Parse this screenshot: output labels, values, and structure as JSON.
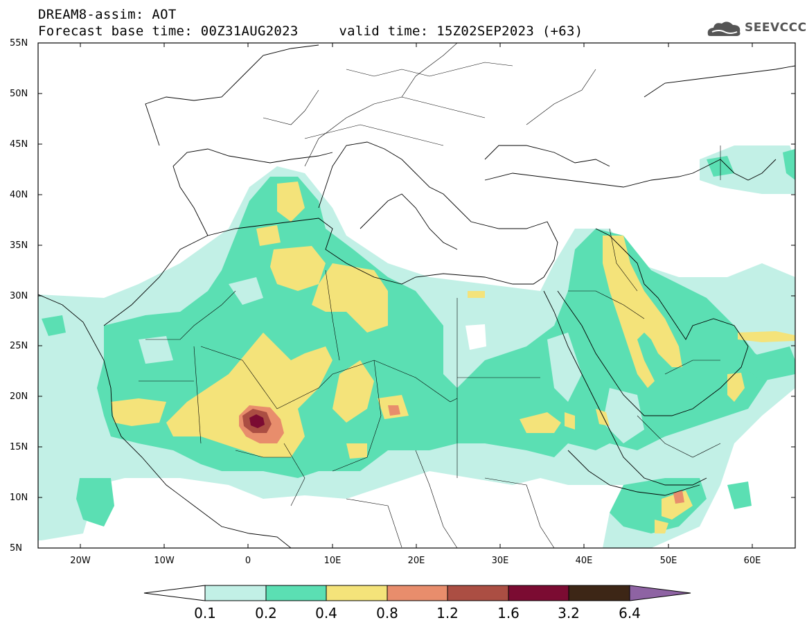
{
  "title": {
    "line1": "DREAM8-assim: AOT",
    "line2": "Forecast base time: 00Z31AUG2023     valid time: 15Z02SEP2023 (+63)"
  },
  "logo": {
    "text": "SEEVCCC",
    "icon": "cloud-icon"
  },
  "map": {
    "variable": "AOT",
    "lat_range": [
      5,
      55
    ],
    "lon_range": [
      -25,
      65
    ],
    "lat_ticks": [
      "55N",
      "50N",
      "45N",
      "40N",
      "35N",
      "30N",
      "25N",
      "20N",
      "15N",
      "10N",
      "5N"
    ],
    "lon_ticks": [
      "20W",
      "10W",
      "0",
      "10E",
      "20E",
      "30E",
      "40E",
      "50E",
      "60E"
    ]
  },
  "colorbar": {
    "levels": [
      "0.1",
      "0.2",
      "0.4",
      "0.8",
      "1.2",
      "1.6",
      "3.2",
      "6.4"
    ],
    "colors": [
      "#ffffff",
      "#c2f0e6",
      "#5bdfb3",
      "#f4e37a",
      "#e88d6c",
      "#ab4e43",
      "#7b0b32",
      "#3d2616",
      "#8e63a3"
    ]
  }
}
